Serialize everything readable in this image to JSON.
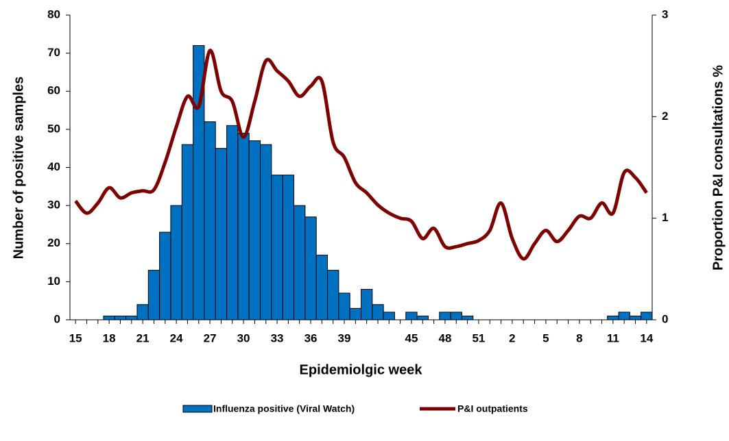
{
  "chart_data": {
    "type": "bar-line",
    "x_label": "Epidemiolgic week",
    "y_label": "Number of positive samples",
    "y2_label": "Proportion P&I consultations %",
    "categories": [
      "15",
      null,
      null,
      "18",
      null,
      null,
      "21",
      null,
      null,
      "24",
      null,
      null,
      "27",
      null,
      null,
      "30",
      null,
      null,
      "33",
      null,
      null,
      "36",
      null,
      null,
      "39",
      null,
      null,
      null,
      null,
      null,
      "45",
      null,
      null,
      "48",
      null,
      null,
      "51",
      null,
      null,
      "2",
      null,
      null,
      "5",
      null,
      null,
      "8",
      null,
      null,
      "11",
      null,
      null,
      "14"
    ],
    "series": [
      {
        "name": "Influenza positive (Viral Watch)",
        "type": "bar",
        "color": "#0070c0",
        "values": [
          0,
          0,
          0,
          1,
          1,
          1,
          4,
          13,
          23,
          30,
          46,
          72,
          52,
          45,
          51,
          49,
          47,
          46,
          38,
          38,
          30,
          27,
          17,
          13,
          7,
          3,
          8,
          4,
          2,
          0,
          2,
          1,
          0,
          2,
          2,
          1,
          0,
          0,
          0,
          0,
          0,
          0,
          0,
          0,
          0,
          0,
          0,
          0,
          1,
          2,
          1,
          2
        ]
      },
      {
        "name": "P&I outpatients",
        "type": "line",
        "axis": "y2",
        "color": "#7f0000",
        "values": [
          1.17,
          1.05,
          1.15,
          1.3,
          1.2,
          1.25,
          1.27,
          1.28,
          1.55,
          1.9,
          2.2,
          2.1,
          2.65,
          2.25,
          2.15,
          1.8,
          2.15,
          2.55,
          2.45,
          2.35,
          2.2,
          2.3,
          2.35,
          1.75,
          1.6,
          1.35,
          1.25,
          1.13,
          1.05,
          1.0,
          0.97,
          0.8,
          0.9,
          0.72,
          0.72,
          0.75,
          0.78,
          0.88,
          1.15,
          0.8,
          0.6,
          0.75,
          0.88,
          0.77,
          0.88,
          1.02,
          1.0,
          1.15,
          1.05,
          1.45,
          1.4,
          1.25
        ]
      }
    ],
    "ylim": [
      0,
      80
    ],
    "yticks": [
      0,
      10,
      20,
      30,
      40,
      50,
      60,
      70,
      80
    ],
    "y2lim": [
      0,
      3
    ],
    "y2ticks": [
      0,
      1,
      2,
      3
    ]
  }
}
